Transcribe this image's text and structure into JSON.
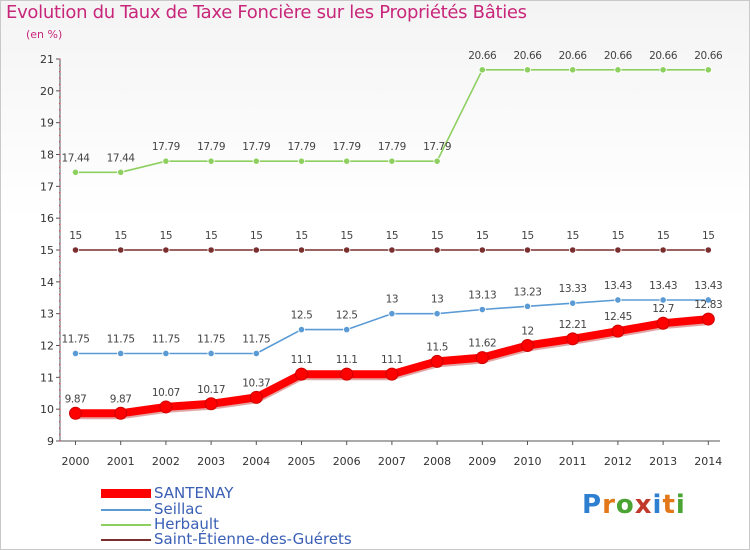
{
  "title": "Evolution du Taux de Taxe Foncière sur les Propriétés Bâties",
  "unit_label": "(en %)",
  "logo": {
    "text": "Proxiti",
    "letters": [
      "P",
      "r",
      "o",
      "x",
      "i",
      "t",
      "i"
    ],
    "colors": [
      "#2f7fd1",
      "#e2781a",
      "#4aa332",
      "#c0392b",
      "#2f7fd1",
      "#e2781a",
      "#4aa332"
    ]
  },
  "chart_data": {
    "type": "line",
    "title": "Evolution du Taux de Taxe Foncière sur les Propriétés Bâties",
    "ylabel": "(en %)",
    "xlabel": "",
    "ylim": [
      9,
      21
    ],
    "yticks": [
      9,
      10,
      11,
      12,
      13,
      14,
      15,
      16,
      17,
      18,
      19,
      20,
      21
    ],
    "x": [
      "2000",
      "2001",
      "2002",
      "2003",
      "2004",
      "2005",
      "2006",
      "2007",
      "2008",
      "2009",
      "2010",
      "2011",
      "2012",
      "2013",
      "2014"
    ],
    "series": [
      {
        "name": "SANTENAY",
        "color": "#ff0000",
        "values": [
          9.87,
          9.87,
          10.07,
          10.17,
          10.37,
          11.1,
          11.1,
          11.1,
          11.5,
          11.62,
          12,
          12.21,
          12.45,
          12.7,
          12.83
        ],
        "labels": [
          "9.87",
          "9.87",
          "10.07",
          "10.17",
          "10.37",
          "11.1",
          "11.1",
          "11.1",
          "11.5",
          "11.62",
          "12",
          "12.21",
          "12.45",
          "12.7",
          "12.83"
        ]
      },
      {
        "name": "Seillac",
        "color": "#5b9bd5",
        "values": [
          11.75,
          11.75,
          11.75,
          11.75,
          11.75,
          12.5,
          12.5,
          13,
          13,
          13.13,
          13.23,
          13.33,
          13.43,
          13.43,
          13.43
        ],
        "labels": [
          "11.75",
          "11.75",
          "11.75",
          "11.75",
          "11.75",
          "12.5",
          "12.5",
          "13",
          "13",
          "13.13",
          "13.23",
          "13.33",
          "13.43",
          "13.43",
          "13.43"
        ]
      },
      {
        "name": "Herbault",
        "color": "#8ed05f",
        "values": [
          17.44,
          17.44,
          17.79,
          17.79,
          17.79,
          17.79,
          17.79,
          17.79,
          17.79,
          20.66,
          20.66,
          20.66,
          20.66,
          20.66,
          20.66
        ],
        "labels": [
          "17.44",
          "17.44",
          "17.79",
          "17.79",
          "17.79",
          "17.79",
          "17.79",
          "17.79",
          "17.79",
          "20.66",
          "20.66",
          "20.66",
          "20.66",
          "20.66",
          "20.66"
        ]
      },
      {
        "name": "Saint-Étienne-des-Guérets",
        "color": "#7a2e2e",
        "values": [
          15,
          15,
          15,
          15,
          15,
          15,
          15,
          15,
          15,
          15,
          15,
          15,
          15,
          15,
          15
        ],
        "labels": [
          "15",
          "15",
          "15",
          "15",
          "15",
          "15",
          "15",
          "15",
          "15",
          "15",
          "15",
          "15",
          "15",
          "15",
          "15"
        ]
      }
    ],
    "legend_position": "bottom-left"
  }
}
